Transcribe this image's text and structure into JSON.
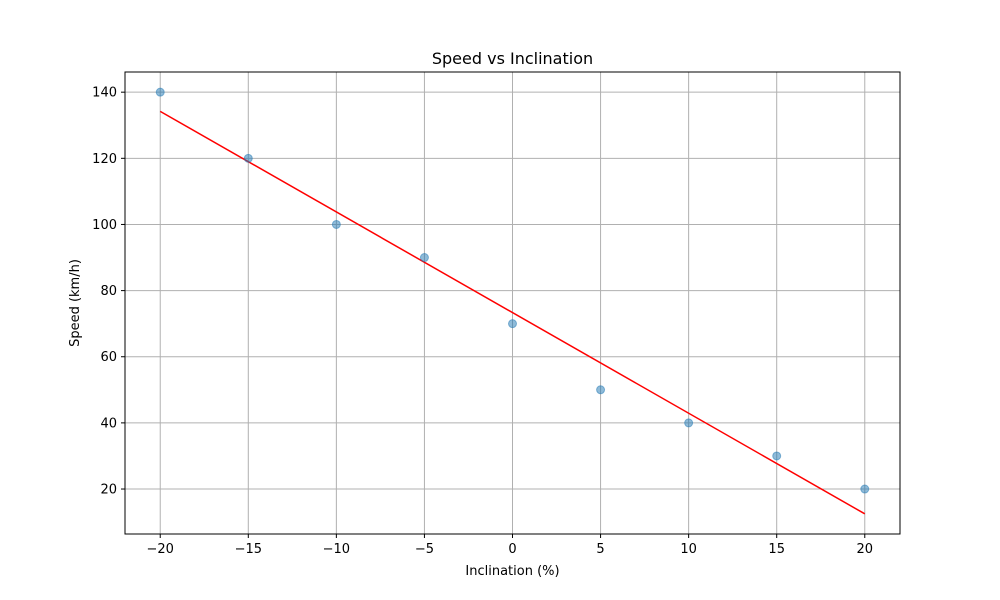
{
  "chart_data": {
    "type": "scatter",
    "title": "Speed vs Inclination",
    "xlabel": "Inclination (%)",
    "ylabel": "Speed (km/h)",
    "xlim": [
      -22,
      22
    ],
    "ylim": [
      6.4,
      146.1
    ],
    "xticks": [
      -20,
      -15,
      -10,
      -5,
      0,
      5,
      10,
      15,
      20
    ],
    "yticks": [
      20,
      40,
      60,
      80,
      100,
      120,
      140
    ],
    "grid": true,
    "series": [
      {
        "kind": "scatter",
        "x": [
          -20,
          -15,
          -10,
          -5,
          0,
          5,
          10,
          15,
          20
        ],
        "y": [
          140,
          120,
          100,
          90,
          70,
          50,
          40,
          30,
          20
        ],
        "color": "#1f77b4"
      },
      {
        "kind": "line",
        "x": [
          -20,
          20
        ],
        "y": [
          134.2,
          12.5
        ],
        "color": "#ff0000"
      }
    ]
  }
}
